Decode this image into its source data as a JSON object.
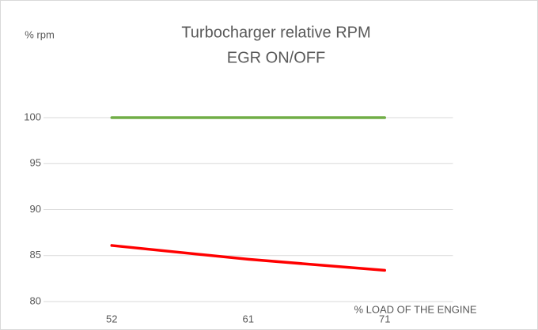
{
  "chart_data": {
    "type": "line",
    "title": "Turbocharger relative RPM",
    "subtitle": "EGR ON/OFF",
    "y_label": "% rpm",
    "x_label": "% LOAD OF THE ENGINE",
    "categories": [
      "52",
      "61",
      "71"
    ],
    "series": [
      {
        "color": "#70ad47",
        "values": [
          100,
          100,
          100
        ]
      },
      {
        "color": "#ff0000",
        "values": [
          86.1,
          84.6,
          83.4
        ]
      }
    ],
    "ylim": [
      80,
      100
    ],
    "yticks": [
      80,
      85,
      90,
      95,
      100
    ],
    "grid": true
  }
}
